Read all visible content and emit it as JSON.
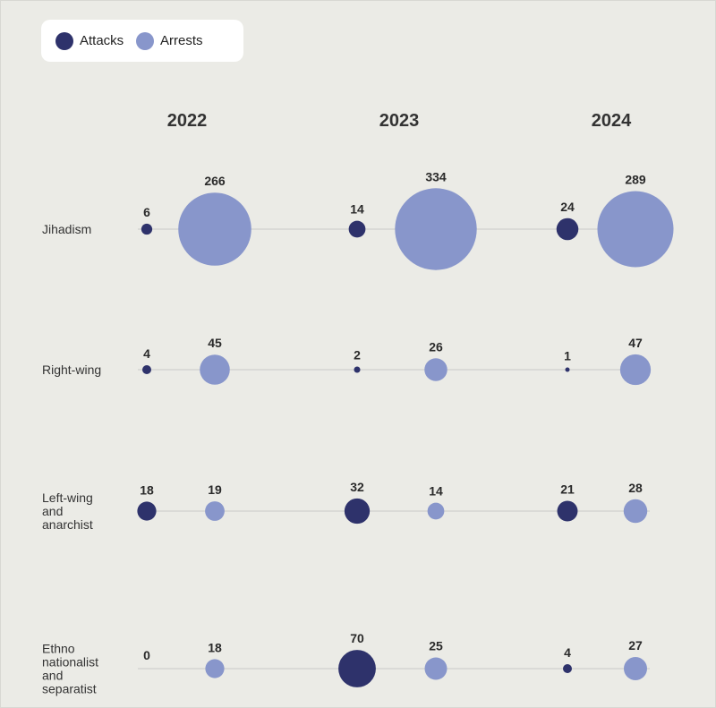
{
  "legend": {
    "attacks_label": "Attacks",
    "arrests_label": "Arrests"
  },
  "colors": {
    "attacks": "#2e326b",
    "arrests": "#8896cb",
    "line": "#c8c8c8",
    "background": "#ebebe6"
  },
  "chart_data": {
    "type": "bubble-dot-matrix",
    "years": [
      "2022",
      "2023",
      "2024"
    ],
    "series": [
      {
        "name": "Attacks"
      },
      {
        "name": "Arrests"
      }
    ],
    "categories": [
      {
        "label_lines": [
          "Jihadism"
        ],
        "attacks": [
          6,
          14,
          24
        ],
        "arrests": [
          266,
          334,
          289
        ]
      },
      {
        "label_lines": [
          "Right-wing"
        ],
        "attacks": [
          4,
          2,
          1
        ],
        "arrests": [
          45,
          26,
          47
        ]
      },
      {
        "label_lines": [
          "Left-wing",
          "and",
          "anarchist"
        ],
        "attacks": [
          18,
          32,
          21
        ],
        "arrests": [
          19,
          14,
          28
        ]
      },
      {
        "label_lines": [
          "Ethno",
          "nationalist",
          "and",
          "separatist"
        ],
        "attacks": [
          0,
          70,
          4
        ],
        "arrests": [
          18,
          25,
          27
        ]
      }
    ]
  }
}
